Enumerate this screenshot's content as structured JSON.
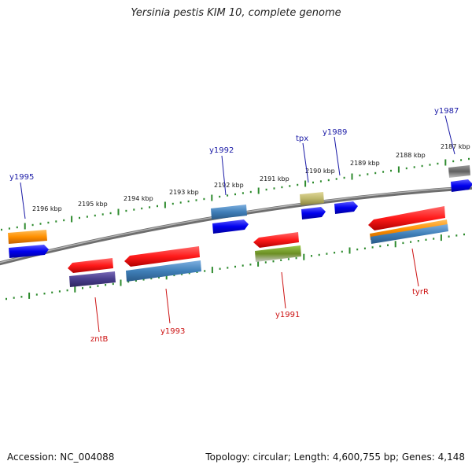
{
  "title": "Yersinia pestis KIM 10, complete genome",
  "footer": {
    "accession": "Accession: NC_004088",
    "summary": "Topology: circular; Length: 4,600,755 bp; Genes: 4,148"
  },
  "colors": {
    "backbone": "#8a8a8a",
    "ticks": "#2e8b2e",
    "label_forward": "#1a1aa6",
    "label_reverse": "#cc1111"
  },
  "scale_labels": [
    "2196 kbp",
    "2195 kbp",
    "2194 kbp",
    "2193 kbp",
    "2192 kbp",
    "2191 kbp",
    "2190 kbp",
    "2189 kbp",
    "2188 kbp",
    "2187 kbp"
  ],
  "gene_labels_top": [
    "y1995",
    "y1992",
    "tpx",
    "y1989",
    "y1987"
  ],
  "gene_labels_bottom": [
    "zntB",
    "y1993",
    "y1991",
    "tyrR"
  ]
}
